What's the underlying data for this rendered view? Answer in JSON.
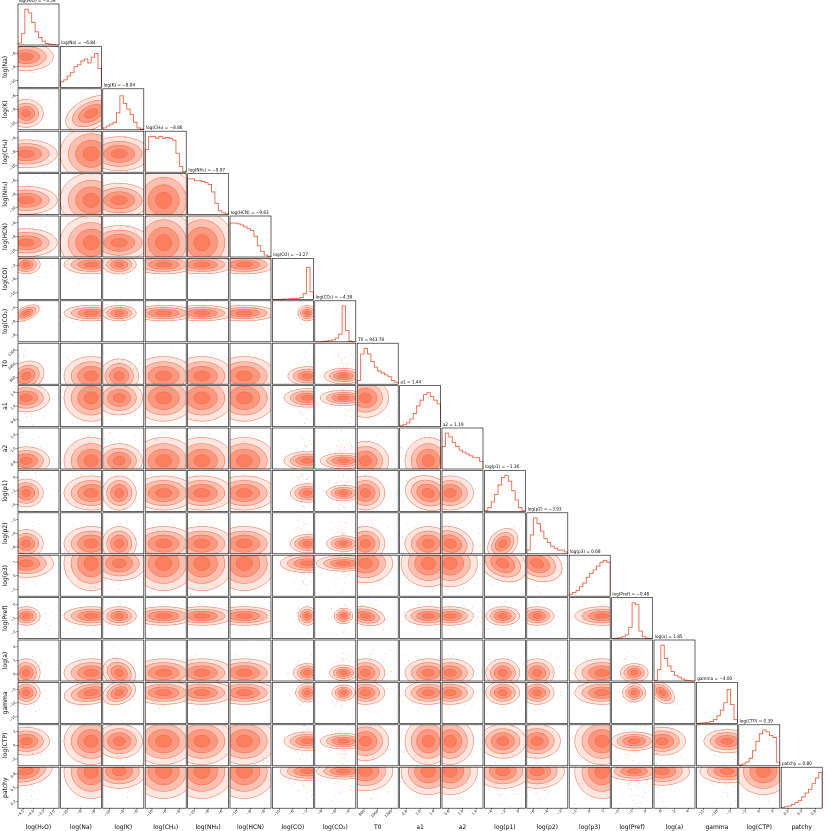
{
  "chart_data": {
    "type": "corner",
    "colors": {
      "fill": "#fa7858",
      "line": "#f26646",
      "points": "#f6a088",
      "frame": "#000000"
    },
    "parameters": [
      {
        "key": "log_h2o",
        "label": "log(H₂O)",
        "title": "log(H₂O) = −3.59",
        "ticks": [
          "−4.5",
          "−4.0",
          "−3.5",
          "−3.0"
        ]
      },
      {
        "key": "log_na",
        "label": "log(Na)",
        "title": "log(Na) = −6.84",
        "ticks": [
          "−10",
          "−8",
          "−6"
        ]
      },
      {
        "key": "log_k",
        "label": "log(K)",
        "title": "log(K) = −8.04",
        "ticks": [
          "−10",
          "−8",
          "−6"
        ]
      },
      {
        "key": "log_ch4",
        "label": "log(CH₄)",
        "title": "log(CH₄) = −8.86",
        "ticks": [
          "−10",
          "−8",
          "−6"
        ]
      },
      {
        "key": "log_nh3",
        "label": "log(NH₃)",
        "title": "log(NH₃) = −9.97",
        "ticks": [
          "−10",
          "−8",
          "−6"
        ]
      },
      {
        "key": "log_hcn",
        "label": "log(HCN)",
        "title": "log(HCN) = −9.63",
        "ticks": [
          "−10",
          "−8",
          "−6"
        ]
      },
      {
        "key": "log_co",
        "label": "log(CO)",
        "title": "log(CO) = −3.27",
        "ticks": [
          "−10",
          "−6",
          "−2"
        ]
      },
      {
        "key": "log_co2",
        "label": "log(CO₂)",
        "title": "log(CO₂) = −4.38",
        "ticks": [
          "−8",
          "−6",
          "−4"
        ]
      },
      {
        "key": "t0",
        "label": "T0",
        "title": "T0 = 943.78",
        "ticks": [
          "800",
          "1000",
          "1200"
        ]
      },
      {
        "key": "a1",
        "label": "a1",
        "title": "a1 = 1.44",
        "ticks": [
          "0.6",
          "1.0",
          "1.4"
        ]
      },
      {
        "key": "a2",
        "label": "a2",
        "title": "a2 = 1.19",
        "ticks": [
          "0.6",
          "1.0",
          "1.4"
        ]
      },
      {
        "key": "log_p1",
        "label": "log(p1)",
        "title": "log(p1) = −1.36",
        "ticks": [
          "−4",
          "−2",
          "0"
        ]
      },
      {
        "key": "log_p2",
        "label": "log(p2)",
        "title": "log(p2) = −3.93",
        "ticks": [
          "−6",
          "−4",
          "−2"
        ]
      },
      {
        "key": "log_p3",
        "label": "log(p3)",
        "title": "log(p3) = 0.68",
        "ticks": [
          "−1",
          "0",
          "1"
        ]
      },
      {
        "key": "log_pref",
        "label": "log(Pref)",
        "title": "log(Pref) = −0.48",
        "ticks": [
          "−2",
          "−1",
          "0"
        ]
      },
      {
        "key": "log_a",
        "label": "log(a)",
        "title": "log(a) = 1.85",
        "ticks": [
          "0",
          "2",
          "4"
        ]
      },
      {
        "key": "gamma",
        "label": "gamma",
        "title": "gamma = −4.00",
        "ticks": [
          "−15",
          "−10",
          "−5"
        ]
      },
      {
        "key": "log_ctp",
        "label": "log(CTP)",
        "title": "log(CTP) = 0.39",
        "ticks": [
          "−2",
          "0",
          "2"
        ]
      },
      {
        "key": "patchy",
        "label": "patchy",
        "title": "patchy = 0.80",
        "ticks": [
          "0.2",
          "0.5",
          "0.8"
        ]
      }
    ],
    "histograms": [
      [
        0.05,
        0.3,
        0.95,
        0.85,
        0.6,
        0.35,
        0.2,
        0.1,
        0.04,
        0.02,
        0.01,
        0.0
      ],
      [
        0.15,
        0.2,
        0.3,
        0.4,
        0.55,
        0.6,
        0.7,
        0.75,
        0.65,
        0.8,
        0.9,
        0.5
      ],
      [
        0.05,
        0.1,
        0.15,
        0.2,
        0.45,
        0.9,
        0.7,
        0.55,
        0.4,
        0.2,
        0.05,
        0.02
      ],
      [
        0.6,
        0.95,
        0.95,
        0.9,
        0.95,
        0.9,
        0.92,
        0.9,
        0.85,
        0.5,
        0.15,
        0.02
      ],
      [
        0.95,
        0.95,
        0.9,
        0.9,
        0.88,
        0.85,
        0.8,
        0.6,
        0.3,
        0.1,
        0.05,
        0.02
      ],
      [
        0.9,
        0.9,
        0.88,
        0.85,
        0.8,
        0.75,
        0.7,
        0.55,
        0.3,
        0.15,
        0.05,
        0.02
      ],
      [
        0.0,
        0.0,
        0.0,
        0.01,
        0.01,
        0.02,
        0.02,
        0.03,
        0.05,
        0.15,
        0.85,
        0.2
      ],
      [
        0.0,
        0.0,
        0.01,
        0.02,
        0.03,
        0.05,
        0.1,
        0.2,
        0.95,
        0.3,
        0.02,
        0.0
      ],
      [
        0.1,
        0.8,
        0.95,
        0.8,
        0.6,
        0.45,
        0.35,
        0.3,
        0.25,
        0.2,
        0.1,
        0.05
      ],
      [
        0.02,
        0.05,
        0.1,
        0.2,
        0.35,
        0.55,
        0.7,
        0.85,
        0.9,
        0.8,
        0.7,
        0.6
      ],
      [
        0.6,
        0.95,
        0.85,
        0.7,
        0.6,
        0.5,
        0.45,
        0.4,
        0.35,
        0.3,
        0.3,
        0.2
      ],
      [
        0.02,
        0.1,
        0.25,
        0.45,
        0.7,
        0.9,
        0.95,
        0.8,
        0.55,
        0.3,
        0.1,
        0.02
      ],
      [
        0.1,
        0.5,
        0.95,
        0.8,
        0.6,
        0.4,
        0.3,
        0.2,
        0.15,
        0.1,
        0.1,
        0.05
      ],
      [
        0.05,
        0.1,
        0.15,
        0.25,
        0.35,
        0.5,
        0.6,
        0.7,
        0.8,
        0.9,
        0.95,
        0.9
      ],
      [
        0.0,
        0.01,
        0.02,
        0.05,
        0.1,
        0.3,
        0.95,
        0.9,
        0.2,
        0.05,
        0.01,
        0.0
      ],
      [
        0.01,
        0.3,
        0.95,
        0.6,
        0.4,
        0.25,
        0.15,
        0.1,
        0.05,
        0.02,
        0.01,
        0.0
      ],
      [
        0.0,
        0.01,
        0.02,
        0.03,
        0.05,
        0.1,
        0.2,
        0.35,
        0.55,
        0.9,
        0.5,
        0.1
      ],
      [
        0.02,
        0.05,
        0.1,
        0.2,
        0.4,
        0.65,
        0.85,
        0.95,
        0.9,
        0.8,
        0.75,
        0.1
      ],
      [
        0.02,
        0.04,
        0.06,
        0.1,
        0.15,
        0.2,
        0.3,
        0.4,
        0.5,
        0.65,
        0.8,
        0.95
      ]
    ],
    "peaks": [
      0.2,
      0.75,
      0.4,
      0.45,
      0.35,
      0.35,
      0.85,
      0.7,
      0.2,
      0.7,
      0.2,
      0.45,
      0.25,
      0.8,
      0.55,
      0.2,
      0.75,
      0.6,
      0.9
    ],
    "spreads": [
      0.18,
      0.35,
      0.22,
      0.4,
      0.4,
      0.4,
      0.12,
      0.1,
      0.25,
      0.3,
      0.3,
      0.22,
      0.22,
      0.35,
      0.12,
      0.18,
      0.15,
      0.3,
      0.35
    ],
    "correlations": [
      {
        "i": 12,
        "j": 11,
        "r": 0.85
      },
      {
        "i": 13,
        "j": 11,
        "r": 0.5
      },
      {
        "i": 13,
        "j": 12,
        "r": 0.4
      },
      {
        "i": 16,
        "j": 15,
        "r": -0.85
      },
      {
        "i": 2,
        "j": 1,
        "r": 0.6
      },
      {
        "i": 7,
        "j": 0,
        "r": 0.7
      },
      {
        "i": 8,
        "j": 0,
        "r": -0.4
      },
      {
        "i": 15,
        "j": 2,
        "r": -0.3
      },
      {
        "i": 16,
        "j": 1,
        "r": 0.3
      },
      {
        "i": 16,
        "j": 2,
        "r": 0.35
      },
      {
        "i": 14,
        "j": 8,
        "r": -0.3
      },
      {
        "i": 11,
        "j": 9,
        "r": -0.2
      },
      {
        "i": 12,
        "j": 10,
        "r": -0.2
      },
      {
        "i": 18,
        "j": 0,
        "r": -0.3
      }
    ]
  }
}
